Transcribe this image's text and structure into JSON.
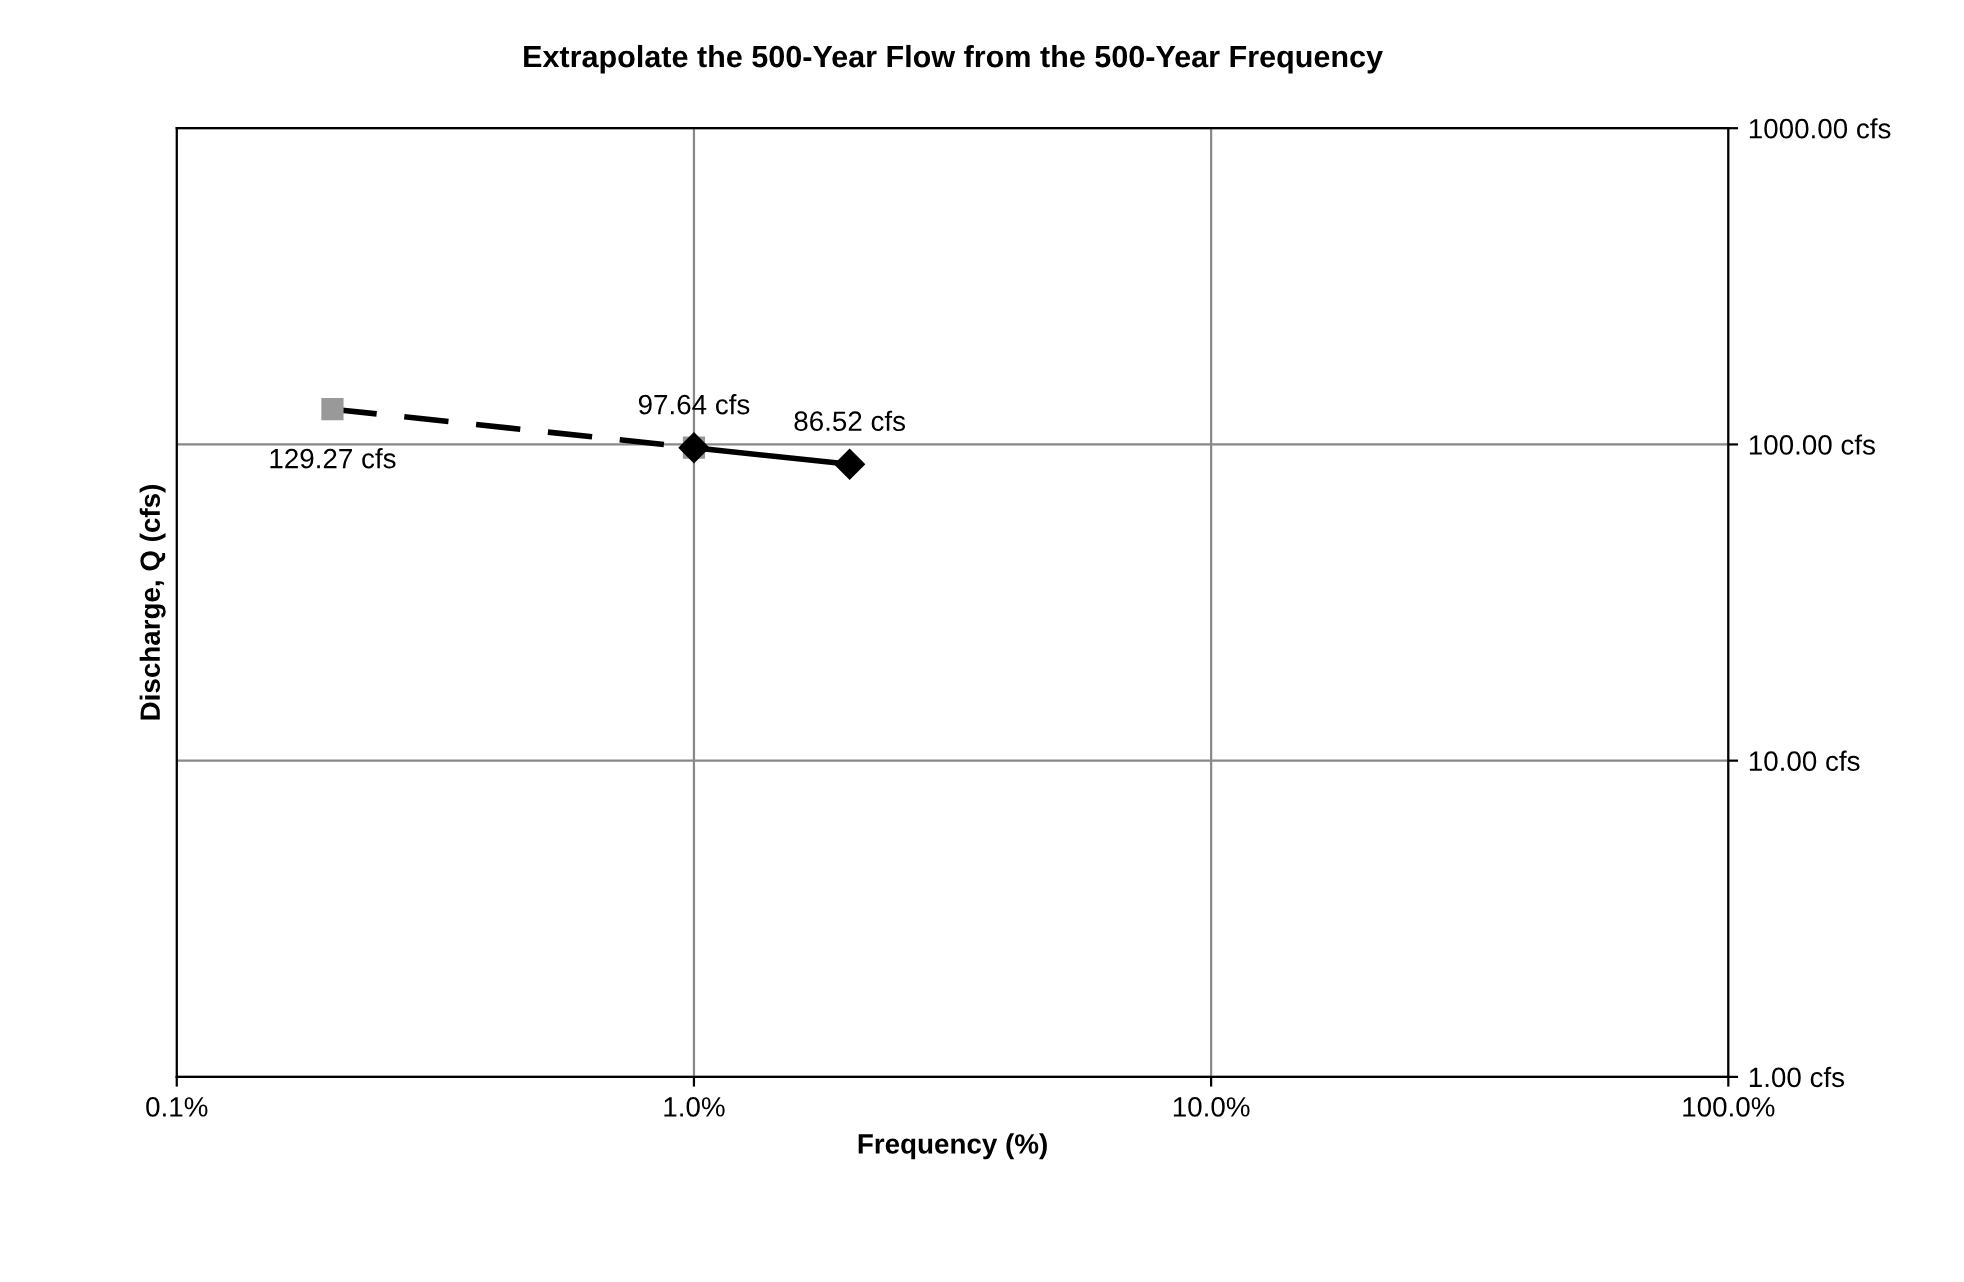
{
  "chart_data": {
    "type": "line",
    "title": "Extrapolate the 500-Year Flow from the 500-Year Frequency",
    "xlabel": "Frequency (%)",
    "ylabel": "Discharge, Q (cfs)",
    "series": [
      {
        "x": [
          0.2,
          1.0
        ],
        "values": [
          129.27,
          97.64
        ],
        "color": "#000000",
        "colors": [
          "#999999",
          "#999999"
        ],
        "marker": "square",
        "line_style": "dashed",
        "value_labels": [
          "129.27 cfs",
          null
        ]
      },
      {
        "x": [
          1.0,
          2.0
        ],
        "values": [
          97.64,
          86.52
        ],
        "color": "#000000",
        "marker": "diamond",
        "line_style": "solid",
        "value_labels": [
          "97.64 cfs",
          "86.52 cfs"
        ]
      }
    ],
    "log": "xy",
    "xlim": [
      0.1,
      100
    ],
    "ylim": [
      1,
      1000
    ],
    "xticks": [
      {
        "value": 0.1,
        "label": "0.1%"
      },
      {
        "value": 1,
        "label": "1.0%"
      },
      {
        "value": 10,
        "label": "10.0%"
      },
      {
        "value": 100,
        "label": "100.0%"
      }
    ],
    "yticks": [
      {
        "value": 1,
        "label": "1.00 cfs"
      },
      {
        "value": 10,
        "label": "10.00 cfs"
      },
      {
        "value": 100,
        "label": "100.00 cfs"
      },
      {
        "value": 1000,
        "label": "1000.00 cfs"
      }
    ],
    "grid": true,
    "legend": false
  }
}
